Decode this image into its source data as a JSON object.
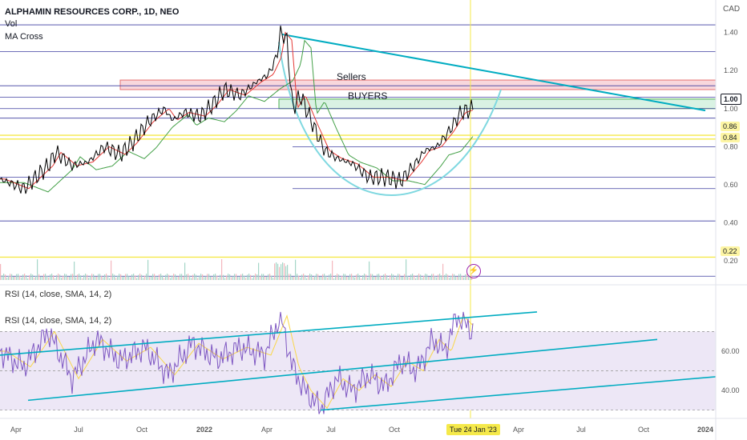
{
  "legend": {
    "title": "ALPHAMIN RESOURCES CORP., 1D, NEO",
    "vol": "Vol",
    "ma": "MA Cross",
    "rsi1": "RSI (14, close, SMA, 14, 2)",
    "rsi2": "RSI (14, close, SMA, 14, 2)"
  },
  "currency": "CAD",
  "annotations": {
    "sellers": "Sellers",
    "buyers": "BUYERS"
  },
  "badges": {
    "price_last": "1.00",
    "level_086": "0.86",
    "level_084": "0.84",
    "level_022": "0.22",
    "date_cursor": "Tue 24 Jan '23"
  },
  "colors": {
    "price": "#000000",
    "ma_fast": "#e53935",
    "ma_slow": "#43a047",
    "trend": "#00acc1",
    "level": "#3f3fa0",
    "yellow": "#f5e94a",
    "rsi": "#7e57c2",
    "rsi_ma": "#f9d74a",
    "rsi_band": "#ede7f6",
    "sellers_zone": "#f8d7dc",
    "buyers_zone": "#d9f2e3"
  },
  "chart_data": [
    {
      "type": "line",
      "series": [
        {
          "name": ""
        }
      ],
      "ylim": [
        0.1,
        1.52
      ],
      "price_ticks": [
        "1.40",
        "1.20",
        "1.00",
        "0.80",
        "0.60",
        "0.40",
        "0.20"
      ],
      "ohlc_path_x": [
        0,
        30,
        60,
        70,
        90,
        110,
        130,
        150,
        165,
        185,
        205,
        215,
        230,
        250,
        265,
        280,
        300,
        320,
        335,
        345,
        350,
        358,
        365,
        375,
        390,
        405,
        420,
        440,
        460,
        480,
        500,
        520,
        530,
        545,
        560,
        575,
        590
      ],
      "ohlc_path_y": [
        0.63,
        0.58,
        0.7,
        0.77,
        0.7,
        0.72,
        0.8,
        0.76,
        0.82,
        0.93,
        1.0,
        0.94,
        0.98,
        0.96,
        1.02,
        1.1,
        1.07,
        1.14,
        1.18,
        1.27,
        1.4,
        1.36,
        1.0,
        1.07,
        0.92,
        0.78,
        0.74,
        0.71,
        0.64,
        0.64,
        0.62,
        0.72,
        0.78,
        0.8,
        0.88,
        0.98,
        1.0
      ],
      "levels": [
        1.44,
        1.3,
        1.12,
        1.06,
        1.0,
        0.95,
        0.86,
        0.84,
        0.8,
        0.64,
        0.58,
        0.41,
        0.22,
        0.12
      ],
      "zones": [
        {
          "label": "Sellers",
          "y0": 1.1,
          "y1": 1.15
        },
        {
          "label": "BUYERS",
          "y0": 1.0,
          "y1": 1.05
        }
      ]
    },
    {
      "type": "line",
      "series": [
        {
          "name": ""
        }
      ],
      "ylim": [
        27,
        82
      ],
      "ticks": [
        "60.00",
        "40.00"
      ],
      "rsi_x": [
        0,
        30,
        60,
        90,
        120,
        150,
        180,
        210,
        240,
        270,
        300,
        330,
        350,
        365,
        380,
        400,
        420,
        440,
        460,
        480,
        500,
        520,
        540,
        555,
        570,
        590
      ],
      "rsi_y": [
        60,
        52,
        70,
        46,
        66,
        55,
        62,
        48,
        64,
        56,
        62,
        58,
        78,
        52,
        40,
        31,
        46,
        40,
        48,
        42,
        55,
        50,
        66,
        60,
        78,
        70
      ]
    }
  ],
  "x_axis": {
    "labels": [
      {
        "text": "Apr",
        "x": 20
      },
      {
        "text": "Jul",
        "x": 98
      },
      {
        "text": "Oct",
        "x": 177
      },
      {
        "text": "2022",
        "x": 255
      },
      {
        "text": "Apr",
        "x": 333
      },
      {
        "text": "Jul",
        "x": 413
      },
      {
        "text": "Oct",
        "x": 492
      },
      {
        "text": "Apr",
        "x": 647
      },
      {
        "text": "Jul",
        "x": 725
      },
      {
        "text": "Oct",
        "x": 803
      },
      {
        "text": "2024",
        "x": 880
      }
    ]
  }
}
